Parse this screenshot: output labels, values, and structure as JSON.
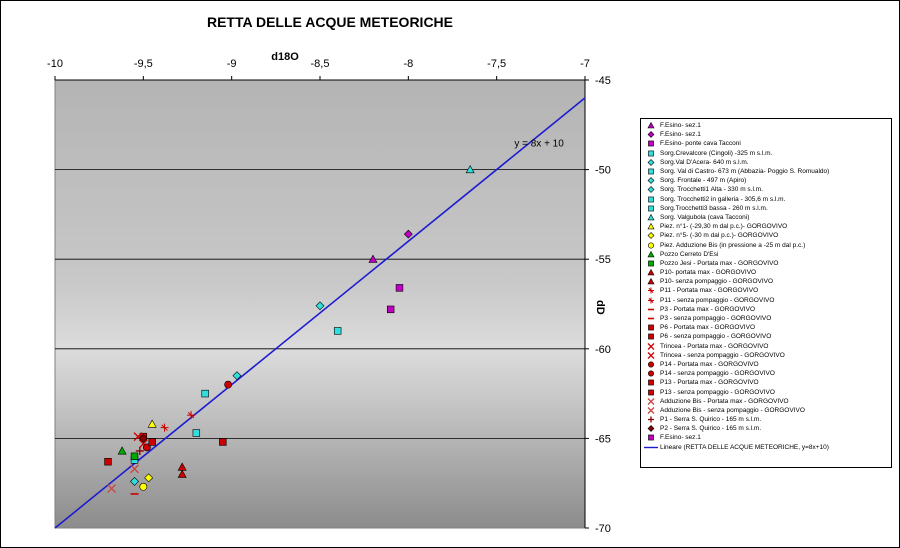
{
  "chart_data": {
    "type": "scatter",
    "title": "RETTA DELLE ACQUE METEORICHE",
    "xlabel": "d18O",
    "ylabel": "dD",
    "xlim": [
      -10,
      -7
    ],
    "ylim": [
      -70,
      -45
    ],
    "x_ticks": [
      "-10",
      "-9,5",
      "-9",
      "-8,5",
      "-8",
      "-7,5",
      "-7"
    ],
    "y_ticks": [
      "-45",
      "-50",
      "-55",
      "-60",
      "-65",
      "-70"
    ],
    "x_axis_position": "top",
    "y_axis_position": "right",
    "grid": "horizontal",
    "legend_position": "right",
    "equation_label": "y = 8x + 10",
    "line": {
      "name": "Lineare (RETTA DELLE ACQUE METEORICHE, y=8x+10)",
      "slope": 8,
      "intercept": 10,
      "color": "#1c1cd0"
    },
    "series": [
      {
        "name": "F.Esino- sez.1",
        "marker": "triangle",
        "color": "#c000c0",
        "points": [
          [
            -8.2,
            -55.0
          ]
        ]
      },
      {
        "name": "F.Esino- sez.1",
        "marker": "diamond",
        "color": "#c000c0",
        "points": [
          [
            -8.0,
            -53.6
          ]
        ]
      },
      {
        "name": "F.Esino- ponte cava Tacconi",
        "marker": "square",
        "color": "#c000c0",
        "points": [
          [
            -8.1,
            -57.8
          ]
        ]
      },
      {
        "name": "Sorg.Crevalcore (Cingoli) -325 m s.l.m.",
        "marker": "square",
        "color": "#33dddd",
        "points": [
          [
            -9.15,
            -62.5
          ]
        ]
      },
      {
        "name": "Sorg.Val D'Acera- 640 m s.l.m.",
        "marker": "diamond",
        "color": "#33dddd",
        "points": [
          [
            -8.5,
            -57.6
          ]
        ]
      },
      {
        "name": "Sorg. Val di Castro- 673 m (Abbazia- Poggio S. Romualdo)",
        "marker": "square",
        "color": "#33dddd",
        "points": [
          [
            -9.55,
            -66.2
          ]
        ]
      },
      {
        "name": "Sorg. Frontale - 497 m (Apiro)",
        "marker": "diamond",
        "color": "#33dddd",
        "points": [
          [
            -8.97,
            -61.5
          ]
        ]
      },
      {
        "name": "Sorg. Trocchetti1 Alta - 330 m s.l.m.",
        "marker": "diamond",
        "color": "#33dddd",
        "points": [
          [
            -9.55,
            -67.4
          ]
        ]
      },
      {
        "name": "Sorg. Trocchetti2 in galleria - 305,6 m s.l.m.",
        "marker": "square",
        "color": "#33dddd",
        "points": [
          [
            -8.4,
            -59.0
          ]
        ]
      },
      {
        "name": "Sorg.Trocchetti3 bassa - 260 m s.l.m.",
        "marker": "square",
        "color": "#33dddd",
        "points": [
          [
            -9.2,
            -64.7
          ]
        ]
      },
      {
        "name": "Sorg. Valgubola (cava Tacconi)",
        "marker": "triangle",
        "color": "#33dddd",
        "points": [
          [
            -7.65,
            -50.0
          ]
        ]
      },
      {
        "name": "Piez. n°1- (-29,30 m dal p.c.)- GORGOVIVO",
        "marker": "triangle",
        "color": "#ffff00",
        "points": [
          [
            -9.45,
            -64.2
          ]
        ]
      },
      {
        "name": "Piez. n°5- (-30 m dal p.c.)- GORGOVIVO",
        "marker": "diamond",
        "color": "#ffff00",
        "points": [
          [
            -9.47,
            -67.2
          ]
        ]
      },
      {
        "name": "Piez. Adduzione Bis (in pressione a -25 m dal p.c.)",
        "marker": "circle",
        "color": "#ffff00",
        "points": [
          [
            -9.5,
            -67.7
          ]
        ]
      },
      {
        "name": "Pozzo Cerreto D'Esi",
        "marker": "triangle",
        "color": "#00aa00",
        "points": [
          [
            -9.62,
            -65.7
          ]
        ]
      },
      {
        "name": "Pozzo Jesi - Portata max - GORGOVIVO",
        "marker": "square",
        "color": "#00aa00",
        "points": [
          [
            -9.55,
            -66.0
          ]
        ]
      },
      {
        "name": "P10- portata max - GORGOVIVO",
        "marker": "triangle",
        "color": "#cc0000",
        "points": [
          [
            -9.28,
            -67.0
          ]
        ]
      },
      {
        "name": "P10- senza pompaggio - GORGOVIVO",
        "marker": "triangle",
        "color": "#cc0000",
        "points": [
          [
            -9.28,
            -66.6
          ]
        ]
      },
      {
        "name": "P11 - Portata max - GORGOVIVO",
        "marker": "star",
        "color": "#cc0000",
        "points": [
          [
            -9.23,
            -63.7
          ]
        ]
      },
      {
        "name": "P11 - senza pompaggio - GORGOVIVO",
        "marker": "star",
        "color": "#cc0000",
        "points": [
          [
            -9.38,
            -64.4
          ]
        ]
      },
      {
        "name": "P3 - Portata max - GORGOVIVO",
        "marker": "dash",
        "color": "#cc0000",
        "points": [
          [
            -9.5,
            -65.1
          ]
        ]
      },
      {
        "name": "P3 - senza pompaggio - GORGOVIVO",
        "marker": "dash",
        "color": "#cc0000",
        "points": [
          [
            -9.55,
            -68.1
          ]
        ]
      },
      {
        "name": "P6 - Portata max - GORGOVIVO",
        "marker": "square",
        "color": "#cc0000",
        "points": [
          [
            -9.5,
            -64.9
          ]
        ]
      },
      {
        "name": "P6 - senza pompaggio - GORGOVIVO",
        "marker": "square",
        "color": "#cc0000",
        "points": [
          [
            -9.05,
            -65.2
          ]
        ]
      },
      {
        "name": "Trincea - Portata max - GORGOVIVO",
        "marker": "x",
        "color": "#cc0000",
        "points": [
          [
            -9.53,
            -64.9
          ]
        ]
      },
      {
        "name": "Trincea - senza pompaggio - GORGOVIVO",
        "marker": "x",
        "color": "#cc0000",
        "points": [
          [
            -9.5,
            -65.3
          ]
        ]
      },
      {
        "name": "P14 - Portata max - GORGOVIVO",
        "marker": "circle",
        "color": "#cc0000",
        "points": [
          [
            -9.02,
            -62.0
          ]
        ]
      },
      {
        "name": "P14 - senza pompaggio - GORGOVIVO",
        "marker": "circle",
        "color": "#cc0000",
        "points": [
          [
            -9.48,
            -65.5
          ]
        ]
      },
      {
        "name": "P13 - Portata max - GORGOVIVO",
        "marker": "square",
        "color": "#cc0000",
        "points": [
          [
            -9.7,
            -66.3
          ]
        ]
      },
      {
        "name": "P13 - senza pompaggio - GORGOVIVO",
        "marker": "square",
        "color": "#cc0000",
        "points": [
          [
            -9.45,
            -65.2
          ]
        ]
      },
      {
        "name": "Adduzione Bis - Portata max - GORGOVIVO",
        "marker": "x",
        "color": "#cc4444",
        "points": [
          [
            -9.68,
            -67.8
          ]
        ]
      },
      {
        "name": "Adduzione Bis - senza pompaggio - GORGOVIVO",
        "marker": "x",
        "color": "#cc4444",
        "points": [
          [
            -9.55,
            -66.7
          ]
        ]
      },
      {
        "name": "P1 - Serra S. Quirico - 165 m s.l.m.",
        "marker": "plus",
        "color": "#880000",
        "points": [
          [
            -9.52,
            -65.7
          ]
        ]
      },
      {
        "name": "P2 - Serra S. Quirico - 165 m s.l.m.",
        "marker": "diamond",
        "color": "#880000",
        "points": [
          [
            -9.5,
            -65.0
          ]
        ]
      },
      {
        "name": "F.Esino- sez.1",
        "marker": "square",
        "color": "#c000c0",
        "points": [
          [
            -8.05,
            -56.6
          ]
        ]
      }
    ]
  }
}
